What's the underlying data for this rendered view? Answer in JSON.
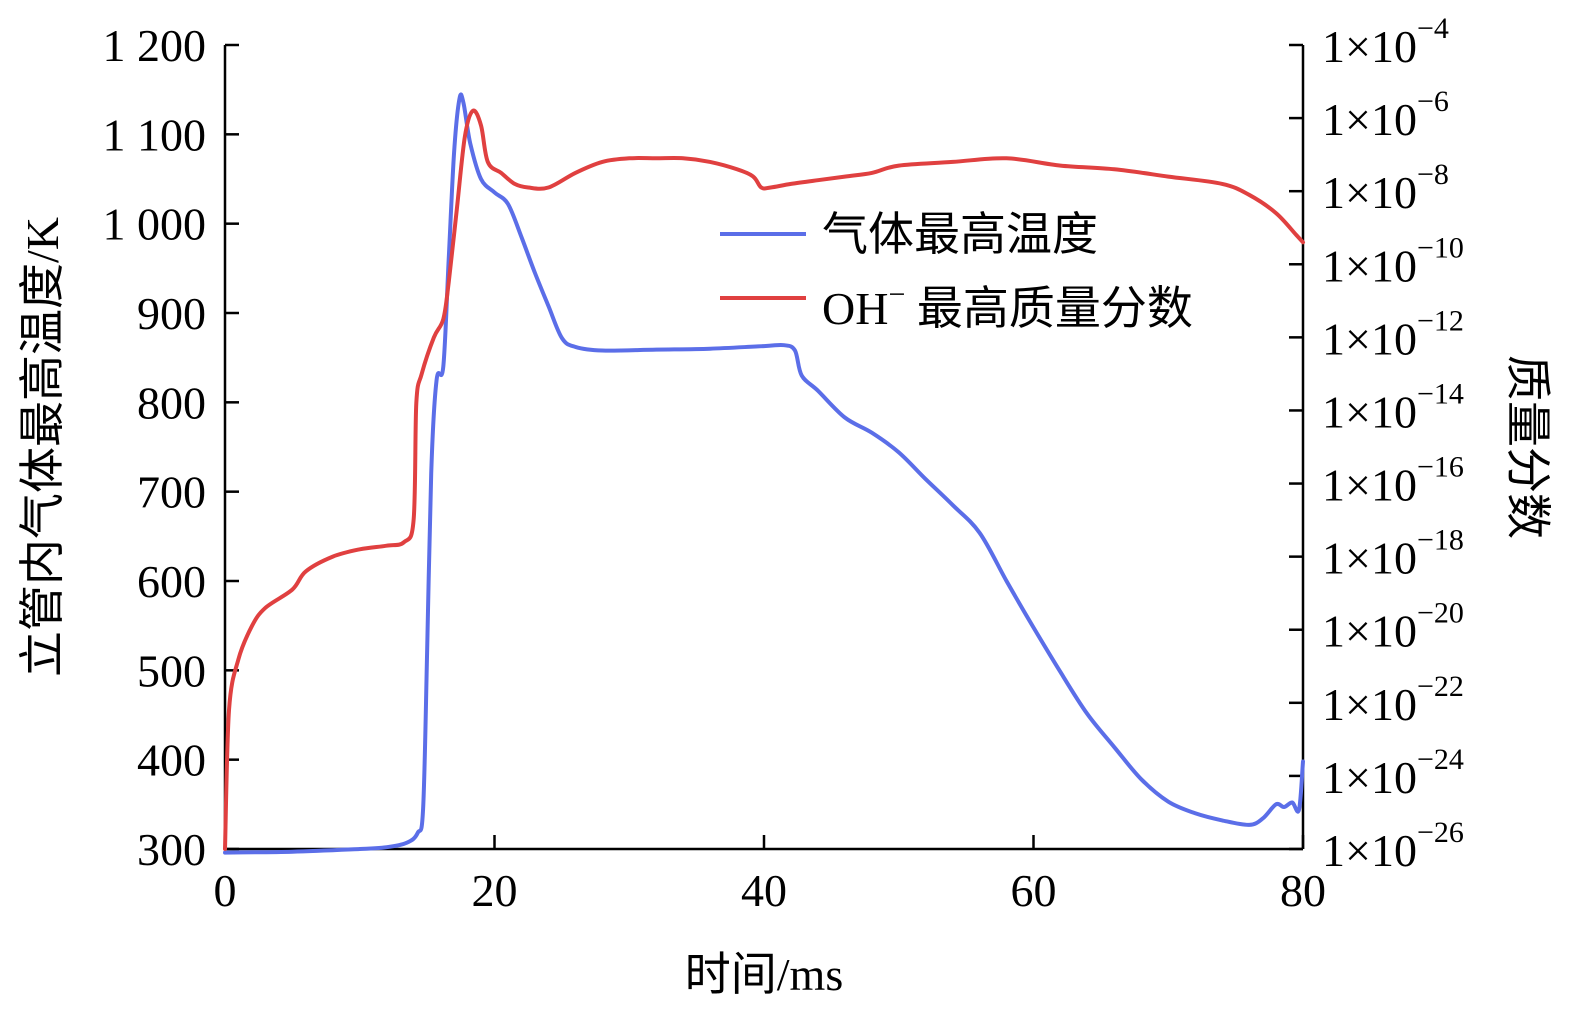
{
  "chart_data": {
    "type": "line",
    "xlabel": "时间/ms",
    "ylabel_left": "立管内气体最高温度/K",
    "ylabel_right": "质量分数",
    "xlim": [
      0,
      80
    ],
    "ylim_left": [
      300,
      1200
    ],
    "ylim_right_log10": [
      -26,
      -4
    ],
    "y_right_scale": "log",
    "grid": false,
    "legend_position": "upper-right",
    "x_ticks": [
      {
        "value": 0,
        "label": "0"
      },
      {
        "value": 20,
        "label": "20"
      },
      {
        "value": 40,
        "label": "40"
      },
      {
        "value": 60,
        "label": "60"
      },
      {
        "value": 80,
        "label": "80"
      }
    ],
    "y_left_ticks": [
      {
        "value": 300,
        "label": "300"
      },
      {
        "value": 400,
        "label": "400"
      },
      {
        "value": 500,
        "label": "500"
      },
      {
        "value": 600,
        "label": "600"
      },
      {
        "value": 700,
        "label": "700"
      },
      {
        "value": 800,
        "label": "800"
      },
      {
        "value": 900,
        "label": "900"
      },
      {
        "value": 1000,
        "label": "1 000"
      },
      {
        "value": 1100,
        "label": "1 100"
      },
      {
        "value": 1200,
        "label": "1 200"
      }
    ],
    "y_right_ticks": [
      {
        "exp": -26,
        "base": "1×10",
        "sup": "−26"
      },
      {
        "exp": -24,
        "base": "1×10",
        "sup": "−24"
      },
      {
        "exp": -22,
        "base": "1×10",
        "sup": "−22"
      },
      {
        "exp": -20,
        "base": "1×10",
        "sup": "−20"
      },
      {
        "exp": -18,
        "base": "1×10",
        "sup": "−18"
      },
      {
        "exp": -16,
        "base": "1×10",
        "sup": "−16"
      },
      {
        "exp": -14,
        "base": "1×10",
        "sup": "−14"
      },
      {
        "exp": -12,
        "base": "1×10",
        "sup": "−12"
      },
      {
        "exp": -10,
        "base": "1×10",
        "sup": "−10"
      },
      {
        "exp": -8,
        "base": "1×10",
        "sup": "−8"
      },
      {
        "exp": -6,
        "base": "1×10",
        "sup": "−6"
      },
      {
        "exp": -4,
        "base": "1×10",
        "sup": "−4"
      }
    ],
    "series": [
      {
        "name": "气体最高温度",
        "axis": "left",
        "color": "#5b6ee8",
        "points": [
          [
            0,
            296
          ],
          [
            5,
            297
          ],
          [
            10,
            300
          ],
          [
            12,
            302
          ],
          [
            13.5,
            307
          ],
          [
            14.3,
            318
          ],
          [
            14.7,
            345
          ],
          [
            15.0,
            520
          ],
          [
            15.3,
            720
          ],
          [
            15.7,
            825
          ],
          [
            16.2,
            840
          ],
          [
            16.6,
            960
          ],
          [
            17.0,
            1080
          ],
          [
            17.4,
            1140
          ],
          [
            17.7,
            1135
          ],
          [
            18.2,
            1090
          ],
          [
            19.0,
            1050
          ],
          [
            20,
            1035
          ],
          [
            21,
            1022
          ],
          [
            22,
            985
          ],
          [
            23,
            945
          ],
          [
            24,
            908
          ],
          [
            25,
            872
          ],
          [
            26,
            862
          ],
          [
            28,
            858
          ],
          [
            32,
            859
          ],
          [
            36,
            860
          ],
          [
            40,
            863
          ],
          [
            41.5,
            864
          ],
          [
            42.3,
            858
          ],
          [
            42.8,
            830
          ],
          [
            44,
            813
          ],
          [
            46,
            783
          ],
          [
            48,
            766
          ],
          [
            50,
            744
          ],
          [
            52,
            714
          ],
          [
            54,
            685
          ],
          [
            56,
            654
          ],
          [
            58,
            600
          ],
          [
            60,
            548
          ],
          [
            62,
            498
          ],
          [
            64,
            451
          ],
          [
            66,
            414
          ],
          [
            68,
            378
          ],
          [
            70,
            353
          ],
          [
            72,
            340
          ],
          [
            74,
            332
          ],
          [
            76,
            327
          ],
          [
            77,
            334
          ],
          [
            78,
            350
          ],
          [
            78.6,
            347
          ],
          [
            79.2,
            352
          ],
          [
            79.7,
            344
          ],
          [
            80,
            398
          ]
        ]
      },
      {
        "name": "OH⁻ 最高质量分数",
        "axis": "right",
        "color": "#e04040",
        "points": [
          [
            0,
            -26.0
          ],
          [
            0.3,
            -22.2
          ],
          [
            1,
            -20.8
          ],
          [
            2,
            -19.9
          ],
          [
            3,
            -19.4
          ],
          [
            5,
            -18.9
          ],
          [
            6,
            -18.4
          ],
          [
            8,
            -18.0
          ],
          [
            10,
            -17.8
          ],
          [
            12,
            -17.7
          ],
          [
            13.3,
            -17.6
          ],
          [
            14.0,
            -17.0
          ],
          [
            14.2,
            -13.8
          ],
          [
            14.6,
            -13.0
          ],
          [
            15.5,
            -12.0
          ],
          [
            16.2,
            -11.5
          ],
          [
            16.6,
            -10.5
          ],
          [
            17.2,
            -8.5
          ],
          [
            17.8,
            -6.5
          ],
          [
            18.4,
            -5.8
          ],
          [
            19.0,
            -6.2
          ],
          [
            19.5,
            -7.2
          ],
          [
            20.5,
            -7.5
          ],
          [
            21.5,
            -7.8
          ],
          [
            22.5,
            -7.9
          ],
          [
            24,
            -7.9
          ],
          [
            26,
            -7.5
          ],
          [
            28,
            -7.2
          ],
          [
            30,
            -7.1
          ],
          [
            32,
            -7.1
          ],
          [
            34,
            -7.1
          ],
          [
            36,
            -7.2
          ],
          [
            38,
            -7.4
          ],
          [
            39.2,
            -7.6
          ],
          [
            39.8,
            -7.9
          ],
          [
            40.5,
            -7.9
          ],
          [
            42,
            -7.8
          ],
          [
            44,
            -7.7
          ],
          [
            46,
            -7.6
          ],
          [
            48,
            -7.5
          ],
          [
            50,
            -7.3
          ],
          [
            54,
            -7.2
          ],
          [
            58,
            -7.1
          ],
          [
            62,
            -7.3
          ],
          [
            66,
            -7.4
          ],
          [
            70,
            -7.6
          ],
          [
            74,
            -7.8
          ],
          [
            76,
            -8.1
          ],
          [
            78,
            -8.6
          ],
          [
            79.5,
            -9.2
          ],
          [
            80,
            -9.4
          ]
        ]
      }
    ],
    "legend": [
      {
        "label": "气体最高温度",
        "color": "#5b6ee8"
      },
      {
        "label_main": "OH",
        "label_sup": "−",
        "label_rest": " 最高质量分数",
        "color": "#e04040"
      }
    ]
  }
}
